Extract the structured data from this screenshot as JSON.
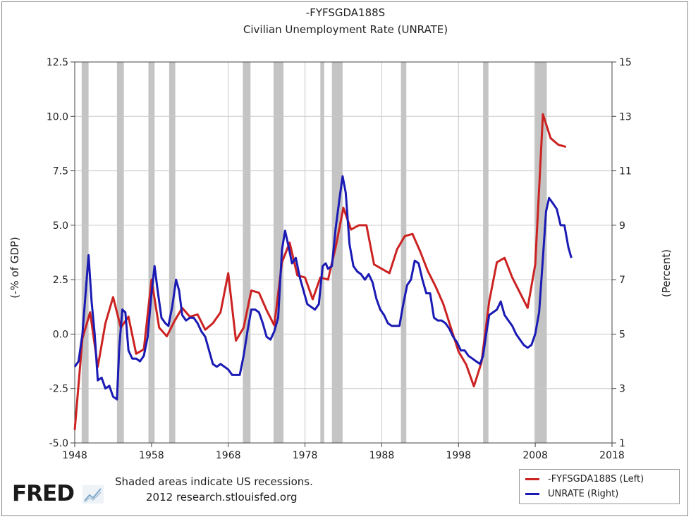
{
  "title_line1": "-FYFSGDA188S",
  "title_line2": "Civilian Unemployment Rate (UNRATE)",
  "footnote_line1": "Shaded areas indicate US recessions.",
  "footnote_line2": "2012 research.stlouisfed.org",
  "logo_text": "FRED",
  "colors": {
    "series_left": "#cc2222",
    "series_right": "#1a1ab4",
    "recession": "#c4c4c4",
    "grid": "#c8c8c8"
  },
  "chart_data": {
    "type": "line",
    "xlabel": "",
    "ylabel_left": "(-% of GDP)",
    "ylabel_right": "(Percent)",
    "xlim": [
      1948,
      2018
    ],
    "ylim_left": [
      -5.0,
      12.5
    ],
    "ylim_right": [
      1,
      15
    ],
    "x_ticks": [
      "1948",
      "1958",
      "1968",
      "1978",
      "1988",
      "1998",
      "2008",
      "2018"
    ],
    "y_ticks_left": [
      "-5.0",
      "-2.5",
      "0.0",
      "2.5",
      "5.0",
      "7.5",
      "10.0",
      "12.5"
    ],
    "y_ticks_right": [
      "1",
      "3",
      "5",
      "7",
      "9",
      "11",
      "13",
      "15"
    ],
    "grid": true,
    "legend_position": "bottom-right",
    "recessions": [
      [
        1948.9,
        1949.8
      ],
      [
        1953.5,
        1954.4
      ],
      [
        1957.6,
        1958.4
      ],
      [
        1960.3,
        1961.1
      ],
      [
        1969.9,
        1970.9
      ],
      [
        1973.9,
        1975.2
      ],
      [
        1980.0,
        1980.5
      ],
      [
        1981.5,
        1982.9
      ],
      [
        1990.5,
        1991.2
      ],
      [
        2001.2,
        2001.9
      ],
      [
        2007.9,
        2009.5
      ]
    ],
    "series": [
      {
        "name": "-FYFSGDA188S (Left)",
        "axis": "left",
        "x": [
          1948,
          1949,
          1950,
          1951,
          1952,
          1953,
          1954,
          1955,
          1956,
          1957,
          1958,
          1959,
          1960,
          1961,
          1962,
          1963,
          1964,
          1965,
          1966,
          1967,
          1968,
          1969,
          1970,
          1971,
          1972,
          1973,
          1974,
          1975,
          1976,
          1977,
          1978,
          1979,
          1980,
          1981,
          1982,
          1983,
          1984,
          1985,
          1986,
          1987,
          1988,
          1989,
          1990,
          1991,
          1992,
          1993,
          1994,
          1995,
          1996,
          1997,
          1998,
          1999,
          2000,
          2001,
          2002,
          2003,
          2004,
          2005,
          2006,
          2007,
          2008,
          2009,
          2010,
          2011,
          2012
        ],
        "values": [
          -4.4,
          -0.2,
          1.0,
          -1.5,
          0.5,
          1.7,
          0.3,
          0.8,
          -0.9,
          -0.7,
          2.5,
          0.3,
          -0.1,
          0.6,
          1.2,
          0.8,
          0.9,
          0.2,
          0.5,
          1.0,
          2.8,
          -0.3,
          0.3,
          2.0,
          1.9,
          1.1,
          0.4,
          3.3,
          4.2,
          2.7,
          2.6,
          1.6,
          2.6,
          2.5,
          4.0,
          5.8,
          4.8,
          5.0,
          5.0,
          3.2,
          3.0,
          2.8,
          3.9,
          4.5,
          4.6,
          3.8,
          2.9,
          2.2,
          1.4,
          0.3,
          -0.8,
          -1.4,
          -2.4,
          -1.3,
          1.5,
          3.3,
          3.5,
          2.6,
          1.9,
          1.2,
          3.2,
          10.1,
          9.0,
          8.7,
          8.6
        ]
      },
      {
        "name": "UNRATE (Right)",
        "axis": "right",
        "x": [
          1948.0,
          1948.5,
          1949.0,
          1949.5,
          1949.8,
          1950.2,
          1950.6,
          1951.0,
          1951.5,
          1952.0,
          1952.5,
          1953.0,
          1953.5,
          1953.8,
          1954.2,
          1954.6,
          1955.0,
          1955.5,
          1956.0,
          1956.5,
          1957.0,
          1957.5,
          1958.0,
          1958.4,
          1958.8,
          1959.3,
          1959.8,
          1960.2,
          1960.7,
          1961.2,
          1961.6,
          1962.0,
          1962.5,
          1963.0,
          1963.5,
          1964.0,
          1964.5,
          1965.0,
          1965.5,
          1966.0,
          1966.5,
          1967.0,
          1967.5,
          1968.0,
          1968.5,
          1969.0,
          1969.5,
          1970.0,
          1970.5,
          1971.0,
          1971.5,
          1972.0,
          1972.5,
          1973.0,
          1973.5,
          1974.0,
          1974.5,
          1975.0,
          1975.4,
          1975.8,
          1976.3,
          1976.8,
          1977.3,
          1977.8,
          1978.3,
          1978.8,
          1979.3,
          1979.8,
          1980.3,
          1980.7,
          1981.0,
          1981.5,
          1982.0,
          1982.5,
          1982.9,
          1983.3,
          1983.8,
          1984.3,
          1984.8,
          1985.3,
          1985.8,
          1986.3,
          1986.8,
          1987.3,
          1987.8,
          1988.3,
          1988.8,
          1989.3,
          1989.8,
          1990.3,
          1990.8,
          1991.3,
          1991.8,
          1992.3,
          1992.8,
          1993.3,
          1993.8,
          1994.3,
          1994.8,
          1995.3,
          1995.8,
          1996.3,
          1996.8,
          1997.3,
          1997.8,
          1998.3,
          1998.8,
          1999.3,
          1999.8,
          2000.3,
          2000.8,
          2001.2,
          2001.6,
          2002.0,
          2002.5,
          2003.0,
          2003.5,
          2004.0,
          2004.5,
          2005.0,
          2005.5,
          2006.0,
          2006.5,
          2007.0,
          2007.5,
          2008.0,
          2008.5,
          2009.0,
          2009.4,
          2009.8,
          2010.3,
          2010.8,
          2011.3,
          2011.8,
          2012.3,
          2012.7
        ],
        "values": [
          3.8,
          4.0,
          5.0,
          6.8,
          7.9,
          6.2,
          5.0,
          3.3,
          3.4,
          3.0,
          3.1,
          2.7,
          2.6,
          4.5,
          5.9,
          5.8,
          4.4,
          4.1,
          4.1,
          4.0,
          4.2,
          4.9,
          6.5,
          7.5,
          6.6,
          5.6,
          5.4,
          5.3,
          6.0,
          7.0,
          6.6,
          5.7,
          5.5,
          5.6,
          5.6,
          5.4,
          5.1,
          4.9,
          4.4,
          3.9,
          3.8,
          3.9,
          3.8,
          3.7,
          3.5,
          3.5,
          3.5,
          4.2,
          5.1,
          5.9,
          5.9,
          5.8,
          5.4,
          4.9,
          4.8,
          5.1,
          5.6,
          8.1,
          8.8,
          8.3,
          7.6,
          7.8,
          7.1,
          6.6,
          6.1,
          6.0,
          5.9,
          6.1,
          7.5,
          7.6,
          7.4,
          7.5,
          8.9,
          10.0,
          10.8,
          10.2,
          8.3,
          7.5,
          7.3,
          7.2,
          7.0,
          7.2,
          6.9,
          6.3,
          5.9,
          5.7,
          5.4,
          5.3,
          5.3,
          5.3,
          6.1,
          6.8,
          7.0,
          7.7,
          7.6,
          7.0,
          6.5,
          6.5,
          5.6,
          5.5,
          5.5,
          5.4,
          5.2,
          4.9,
          4.7,
          4.4,
          4.4,
          4.2,
          4.1,
          4.0,
          3.9,
          4.2,
          5.0,
          5.7,
          5.8,
          5.9,
          6.2,
          5.7,
          5.5,
          5.3,
          5.0,
          4.8,
          4.6,
          4.5,
          4.6,
          5.0,
          5.8,
          7.8,
          9.5,
          10.0,
          9.8,
          9.6,
          9.0,
          9.0,
          8.2,
          7.8
        ]
      }
    ]
  }
}
